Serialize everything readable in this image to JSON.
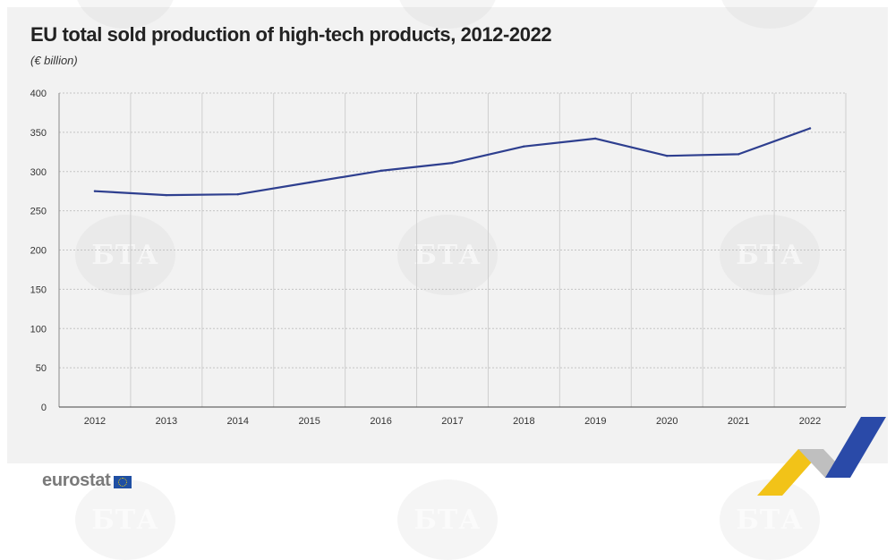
{
  "chart_data": {
    "type": "line",
    "title": "EU total sold production of high-tech products, 2012-2022",
    "subtitle": "(€ billion)",
    "xlabel": "",
    "ylabel": "",
    "categories": [
      "2012",
      "2013",
      "2014",
      "2015",
      "2016",
      "2017",
      "2018",
      "2019",
      "2020",
      "2021",
      "2022"
    ],
    "series": [
      {
        "values": [
          275,
          270,
          271,
          286,
          301,
          311,
          332,
          342,
          320,
          322,
          355
        ]
      }
    ],
    "ylim": [
      0,
      400
    ],
    "yticks": [
      0,
      50,
      100,
      150,
      200,
      250,
      300,
      350,
      400
    ],
    "grid": true,
    "line_color": "#2e3f8f"
  },
  "branding": {
    "logo_text": "eurostat",
    "watermark_text": "БТА"
  }
}
